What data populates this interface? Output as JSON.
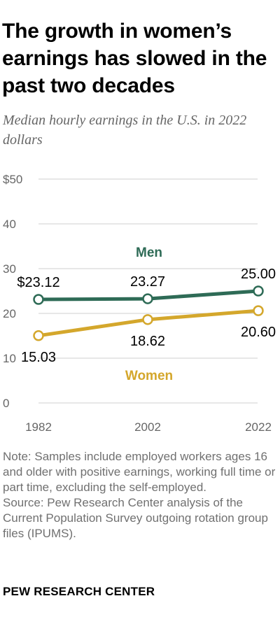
{
  "header": {
    "title": "The growth in women’s earnings has slowed in the past two decades",
    "subtitle": "Median hourly earnings in the U.S. in 2022 dollars"
  },
  "chart_data": {
    "type": "line",
    "x": [
      "1982",
      "2002",
      "2022"
    ],
    "yticks": [
      "$50",
      "40",
      "30",
      "20",
      "10",
      "0"
    ],
    "ylim": [
      0,
      50
    ],
    "grid": true,
    "series": [
      {
        "name": "Men",
        "values": [
          23.12,
          23.27,
          25.0
        ],
        "labels": [
          "$23.12",
          "23.27",
          "25.00"
        ],
        "color": "#2e6b56"
      },
      {
        "name": "Women",
        "values": [
          15.03,
          18.62,
          20.6
        ],
        "labels": [
          "15.03",
          "18.62",
          "20.60"
        ],
        "color": "#d4a72c"
      }
    ]
  },
  "notes": {
    "note": "Note: Samples include employed workers ages 16 and older with positive earnings, working full time or part time, excluding the self-employed.",
    "source": "Source: Pew Research Center analysis of the Current Population Survey outgoing rotation group files (IPUMS)."
  },
  "footer": {
    "org": "PEW RESEARCH CENTER"
  }
}
